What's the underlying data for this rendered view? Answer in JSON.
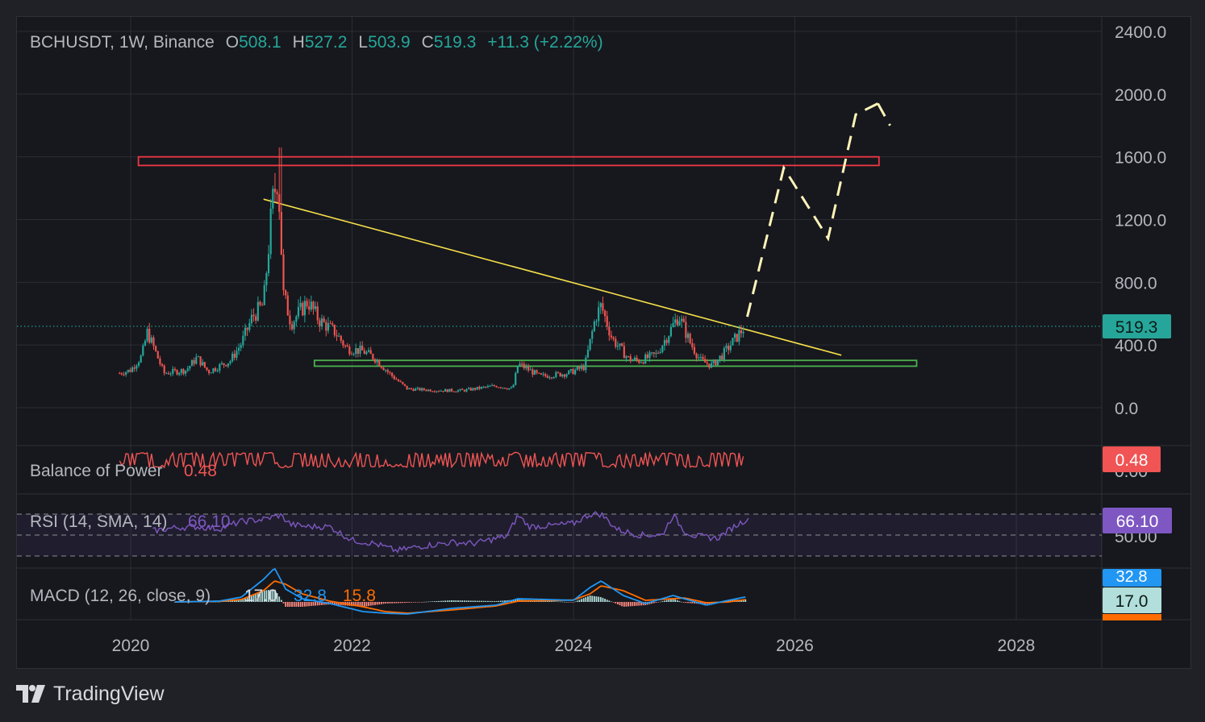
{
  "header": {
    "symbol": "BCHUSDT, 1W, Binance",
    "o_label": "O",
    "o_value": "508.1",
    "h_label": "H",
    "h_value": "527.2",
    "l_label": "L",
    "l_value": "503.9",
    "c_label": "C",
    "c_value": "519.3",
    "change": "+11.3 (+2.22%)"
  },
  "branding": {
    "name": "TradingView"
  },
  "colors": {
    "background": "#16181d",
    "grid": "#2a2d34",
    "text": "#b4b7be",
    "up": "#26a69a",
    "down": "#ef5350",
    "resistance": "#f23645",
    "support": "#4caf50",
    "trendline": "#f7e04b",
    "projection": "#fff3b8",
    "bop": "#f05454",
    "rsi": "#7e57c2",
    "macd": "#2196f3",
    "signal": "#ff6d00"
  },
  "chart_data": [
    {
      "type": "line",
      "name": "price",
      "title": "BCHUSDT, 1W, Binance",
      "ylim": [
        -200,
        2600
      ],
      "yticks": [
        "2400.0",
        "2000.0",
        "1600.0",
        "1200.0",
        "800.0",
        "400.0",
        "0.0"
      ],
      "ytick_values": [
        2400,
        2000,
        1600,
        1200,
        800,
        400,
        0
      ],
      "xticks": [
        "2020",
        "2022",
        "2024",
        "2026",
        "2028"
      ],
      "xtick_values": [
        2020,
        2022,
        2024,
        2026,
        2028
      ],
      "last_price_label": "519.3",
      "last_price": 519.3,
      "series": [
        {
          "x": [
            2019.9,
            2020.0,
            2020.1,
            2020.15,
            2020.2,
            2020.3,
            2020.5,
            2020.6,
            2020.7,
            2020.9,
            2021.0,
            2021.1,
            2021.2,
            2021.28,
            2021.33,
            2021.38,
            2021.45,
            2021.6,
            2021.7,
            2021.85,
            2021.95,
            2022.1,
            2022.2,
            2022.35,
            2022.5,
            2022.8,
            2023.0,
            2023.3,
            2023.45,
            2023.5,
            2023.7,
            2023.95,
            2024.1,
            2024.2,
            2024.25,
            2024.35,
            2024.5,
            2024.6,
            2024.75,
            2024.88,
            2024.95,
            2025.05,
            2025.15,
            2025.25,
            2025.35,
            2025.45,
            2025.55
          ],
          "y": [
            220,
            240,
            330,
            480,
            400,
            220,
            240,
            320,
            230,
            300,
            410,
            580,
            660,
            1300,
            1500,
            720,
            540,
            680,
            560,
            480,
            380,
            360,
            320,
            210,
            120,
            110,
            110,
            140,
            120,
            280,
            200,
            220,
            260,
            580,
            650,
            440,
            310,
            300,
            340,
            500,
            590,
            420,
            300,
            270,
            340,
            430,
            519.3
          ]
        }
      ],
      "annotations": [
        {
          "kind": "resistance_zone",
          "x": [
            2020.07,
            2026.76
          ],
          "y": [
            1545,
            1600
          ]
        },
        {
          "kind": "support_zone",
          "x": [
            2021.66,
            2027.1
          ],
          "y": [
            265,
            302
          ]
        },
        {
          "kind": "trendline",
          "x": [
            2021.2,
            2026.42
          ],
          "y": [
            1330,
            335
          ]
        },
        {
          "kind": "projection",
          "x": [
            2025.57,
            2025.9,
            2026.3,
            2026.55,
            2026.75
          ],
          "y": [
            580,
            1530,
            1080,
            1870,
            1940
          ]
        },
        {
          "kind": "projection",
          "x": [
            2026.75,
            2026.86
          ],
          "y": [
            1940,
            1800
          ]
        }
      ]
    },
    {
      "type": "line",
      "name": "Balance of Power",
      "label": "Balance of Power",
      "value_text": "0.48",
      "axis_hidden_text": "0.00",
      "value": 0.48,
      "ylim": [
        -1,
        1
      ]
    },
    {
      "type": "line",
      "name": "RSI",
      "label": "RSI (14, SMA, 14)",
      "value_text": "66.10",
      "value": 66.1,
      "axis_text": "50.00",
      "ylim": [
        20,
        80
      ],
      "bands": [
        70,
        50,
        30
      ],
      "x": [
        2020.2,
        2020.4,
        2020.6,
        2020.8,
        2021.0,
        2021.2,
        2021.35,
        2021.45,
        2021.6,
        2021.8,
        2022.0,
        2022.2,
        2022.4,
        2022.6,
        2022.9,
        2023.1,
        2023.4,
        2023.5,
        2023.6,
        2023.8,
        2024.0,
        2024.15,
        2024.25,
        2024.4,
        2024.6,
        2024.8,
        2024.9,
        2025.0,
        2025.1,
        2025.3,
        2025.45,
        2025.58
      ],
      "y": [
        54,
        57,
        58,
        56,
        63,
        65,
        69,
        60,
        58,
        58,
        45,
        42,
        35,
        39,
        43,
        42,
        49,
        69,
        58,
        59,
        61,
        70,
        70,
        55,
        50,
        50,
        69,
        54,
        49,
        47,
        58,
        66.1
      ]
    },
    {
      "type": "line",
      "name": "MACD",
      "label": "MACD (12, 26, close, 9)",
      "hist_text": "17.0",
      "macd_text": "32.8",
      "signal_text": "15.8",
      "macd_value": 32.8,
      "signal_value": 15.8,
      "hist_value": 17.0,
      "ylim": [
        -120,
        220
      ],
      "x": [
        2020.4,
        2020.8,
        2021.0,
        2021.2,
        2021.3,
        2021.4,
        2021.55,
        2021.8,
        2022.1,
        2022.3,
        2022.5,
        2022.9,
        2023.3,
        2023.5,
        2024.0,
        2024.15,
        2024.25,
        2024.45,
        2024.65,
        2024.9,
        2025.0,
        2025.2,
        2025.4,
        2025.57
      ],
      "series": [
        {
          "name": "MACD",
          "values": [
            0,
            5,
            30,
            140,
            210,
            80,
            20,
            -10,
            -60,
            -70,
            -75,
            -40,
            -20,
            20,
            10,
            90,
            130,
            40,
            -10,
            40,
            20,
            -20,
            10,
            32.8
          ]
        },
        {
          "name": "Signal",
          "values": [
            0,
            4,
            15,
            70,
            130,
            110,
            50,
            5,
            -30,
            -60,
            -70,
            -50,
            -25,
            5,
            12,
            50,
            100,
            70,
            10,
            20,
            25,
            -5,
            0,
            15.8
          ]
        }
      ]
    }
  ]
}
